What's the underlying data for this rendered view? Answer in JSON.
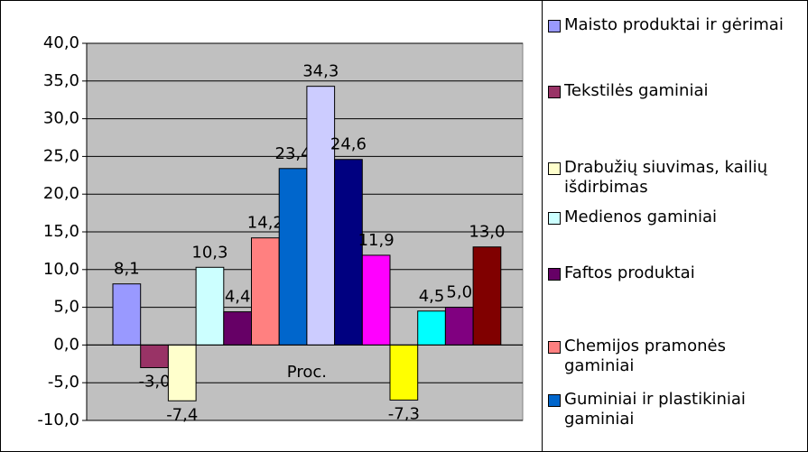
{
  "chart_data": {
    "type": "bar",
    "categories": [
      "Proc."
    ],
    "ylim": [
      -10,
      40
    ],
    "yticks": [
      {
        "value": -10,
        "label": "-10,0"
      },
      {
        "value": -5,
        "label": "-5,0"
      },
      {
        "value": 0,
        "label": "0,0"
      },
      {
        "value": 5,
        "label": "5,0"
      },
      {
        "value": 10,
        "label": "10,0"
      },
      {
        "value": 15,
        "label": "15,0"
      },
      {
        "value": 20,
        "label": "20,0"
      },
      {
        "value": 25,
        "label": "25,0"
      },
      {
        "value": 30,
        "label": "30,0"
      },
      {
        "value": 35,
        "label": "35,0"
      },
      {
        "value": 40,
        "label": "40,0"
      }
    ],
    "grid": true,
    "series": [
      {
        "name": "Maisto produktai ir gėrimai",
        "color": "#9999ff",
        "values": [
          8.1
        ],
        "value_labels": [
          "8,1"
        ]
      },
      {
        "name": "Tekstilės gaminiai",
        "color": "#993366",
        "values": [
          -3.0
        ],
        "value_labels": [
          "-3,0"
        ]
      },
      {
        "name": "Drabužių siuvimas, kailių išdirbimas",
        "color": "#ffffcc",
        "values": [
          -7.4
        ],
        "value_labels": [
          "-7,4"
        ]
      },
      {
        "name": "Medienos gaminiai",
        "color": "#ccffff",
        "values": [
          10.3
        ],
        "value_labels": [
          "10,3"
        ]
      },
      {
        "name": "Faftos produktai",
        "color": "#660066",
        "values": [
          4.4
        ],
        "value_labels": [
          "4,4"
        ]
      },
      {
        "name": "Chemijos pramonės gaminiai",
        "color": "#ff8080",
        "values": [
          14.2
        ],
        "value_labels": [
          "14,2"
        ]
      },
      {
        "name": "Guminiai ir plastikiniai gaminiai",
        "color": "#0066cc",
        "values": [
          23.4
        ],
        "value_labels": [
          "23,4"
        ]
      },
      {
        "color": "#ccccff",
        "values": [
          34.3
        ],
        "value_labels": [
          "34,3"
        ]
      },
      {
        "color": "#000080",
        "values": [
          24.6
        ],
        "value_labels": [
          "24,6"
        ]
      },
      {
        "color": "#ff00ff",
        "values": [
          11.9
        ],
        "value_labels": [
          "11,9"
        ]
      },
      {
        "color": "#ffff00",
        "values": [
          -7.3
        ],
        "value_labels": [
          "-7,3"
        ]
      },
      {
        "color": "#00ffff",
        "values": [
          4.5
        ],
        "value_labels": [
          "4,5"
        ]
      },
      {
        "color": "#800080",
        "values": [
          5.0
        ],
        "value_labels": [
          "5,0"
        ]
      },
      {
        "color": "#800000",
        "values": [
          13.0
        ],
        "value_labels": [
          "13,0"
        ]
      }
    ]
  }
}
